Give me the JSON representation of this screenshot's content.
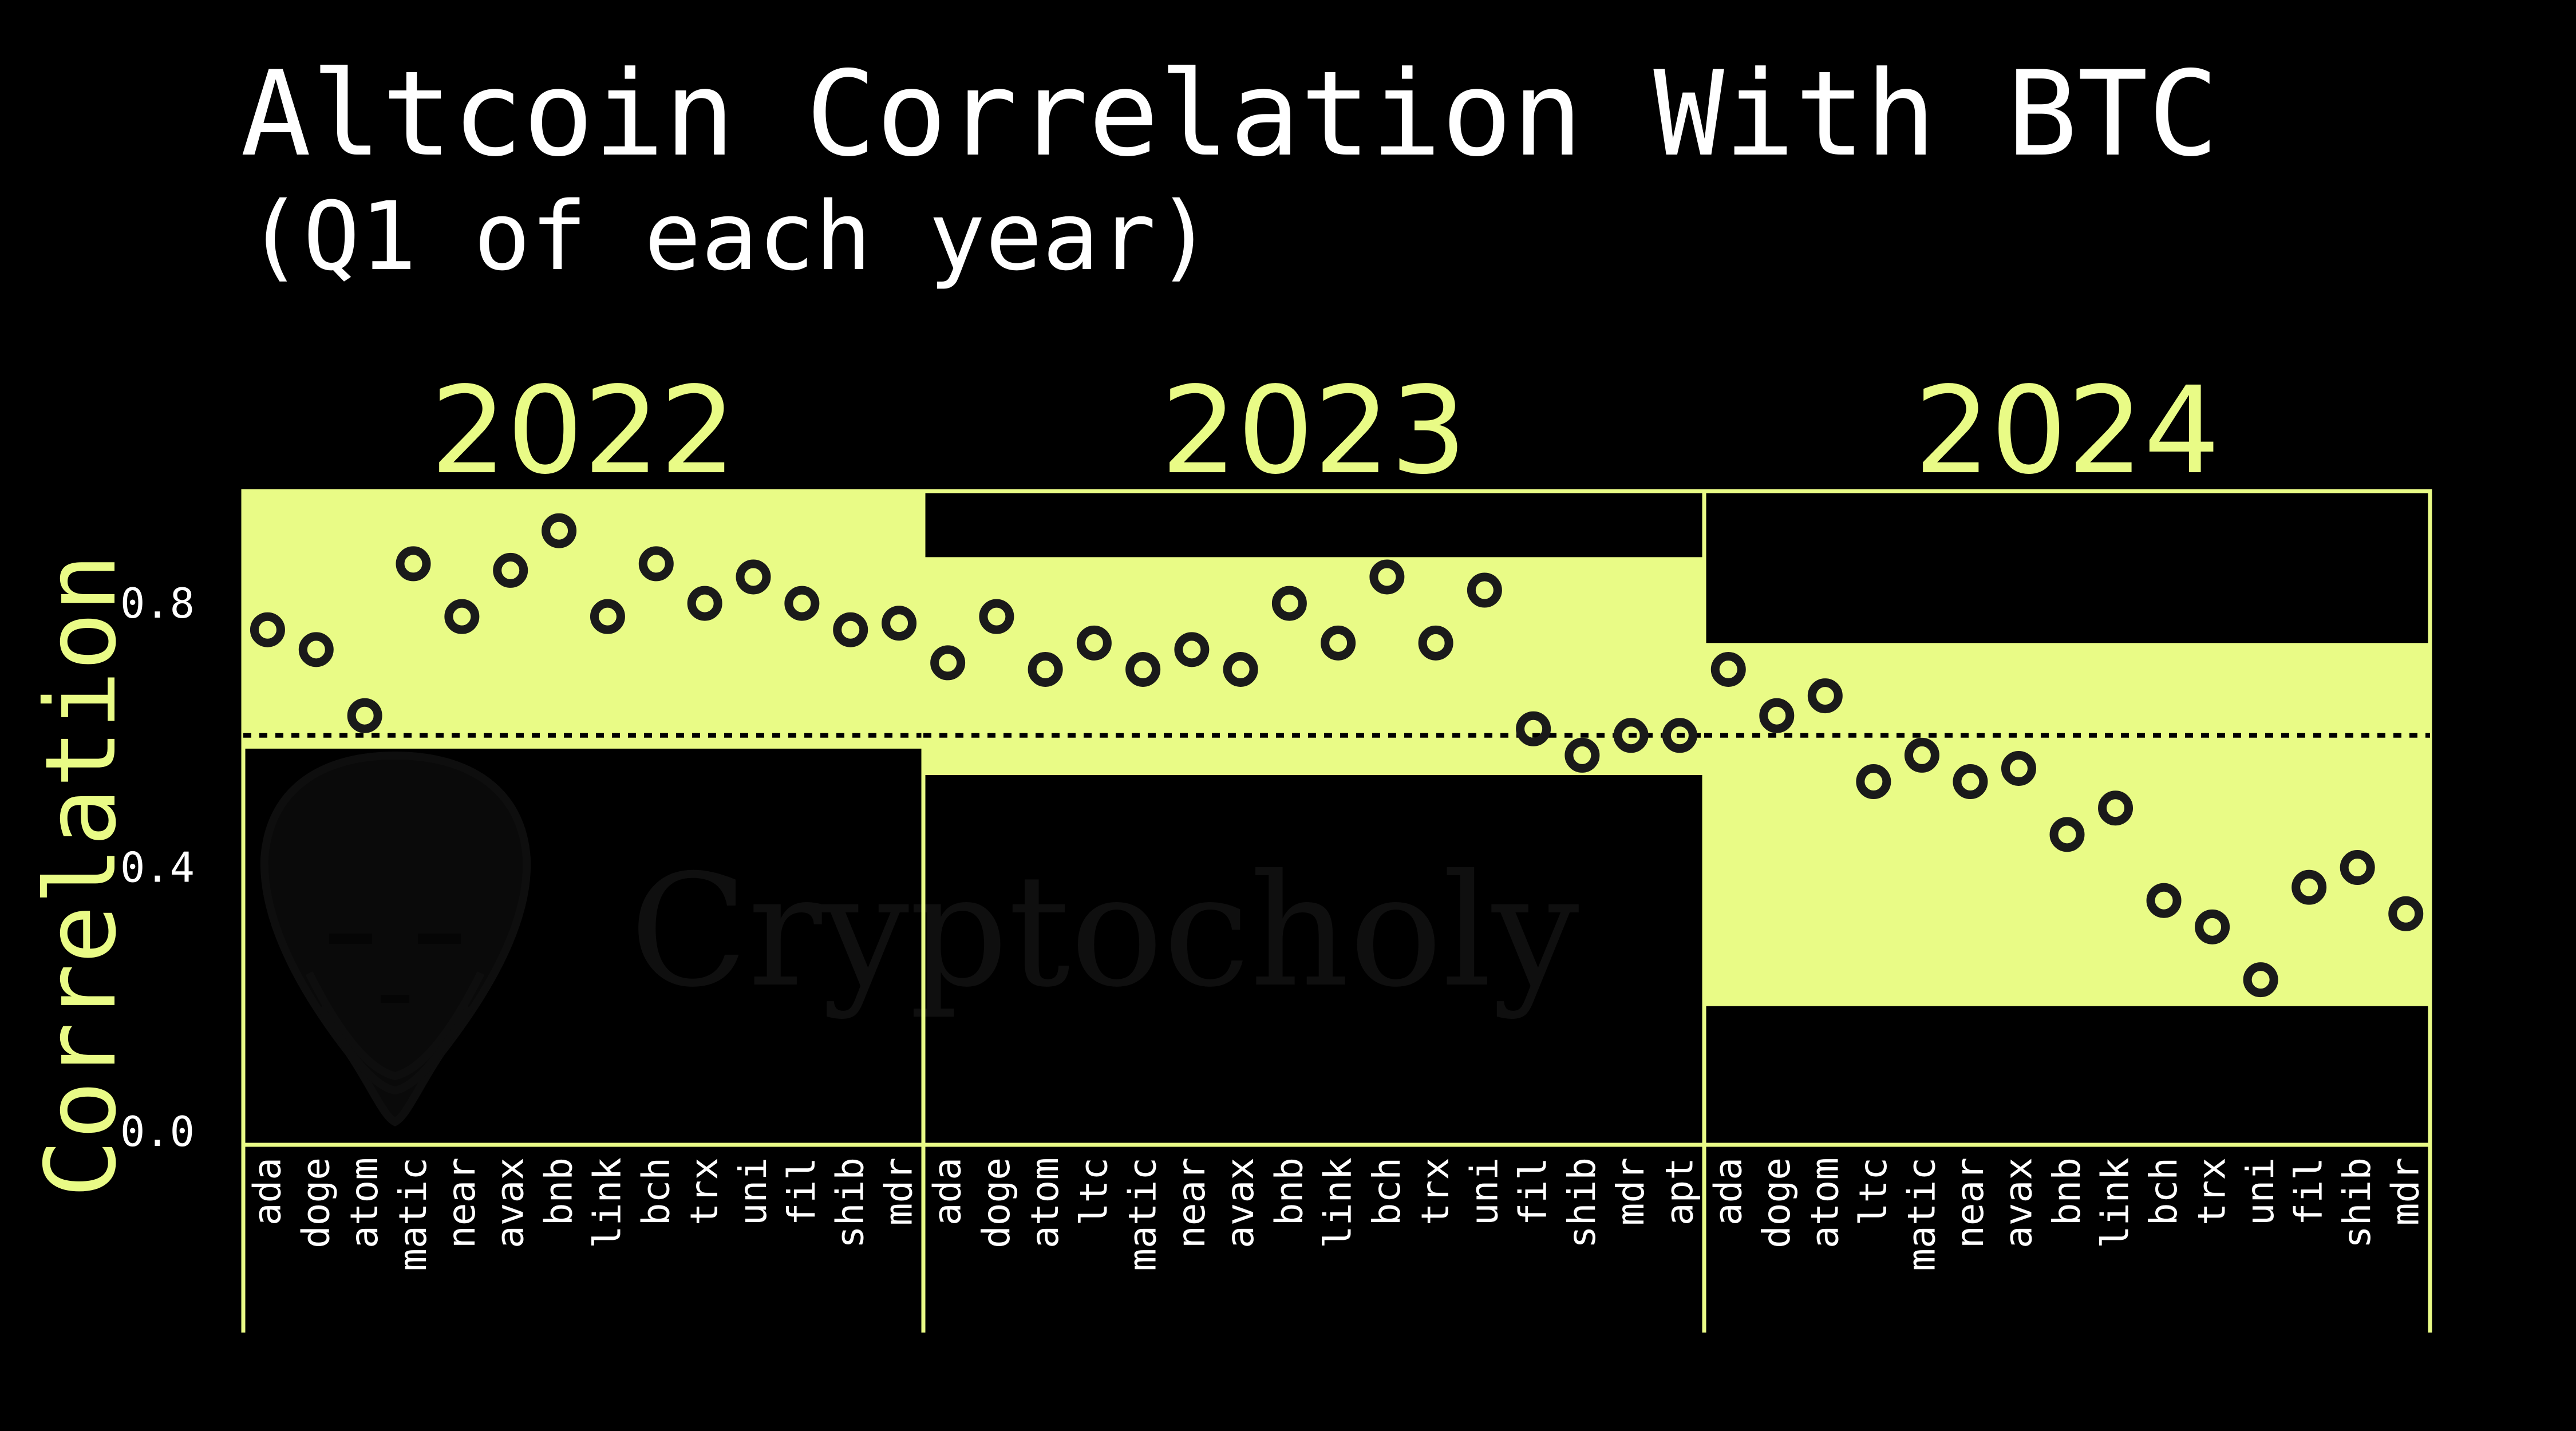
{
  "title": "Altcoin Correlation With BTC",
  "subtitle": "(Q1 of each year)",
  "watermark": "Cryptocholy",
  "colors": {
    "background": "#000000",
    "accent": "#e9fb86",
    "text": "#ffffff",
    "marker_edge": "#1a1a1a"
  },
  "chart_data": {
    "type": "scatter",
    "ylabel": "Correlation",
    "ylim": [
      -0.02,
      0.97
    ],
    "yticks": [
      {
        "value": 0.0,
        "label": "0.0"
      },
      {
        "value": 0.4,
        "label": "0.4"
      },
      {
        "value": 0.8,
        "label": "0.8"
      }
    ],
    "reference_line": 0.6,
    "panels": [
      {
        "label": "2022",
        "band": [
          0.58,
          0.97
        ],
        "coins": [
          "ada",
          "doge",
          "atom",
          "matic",
          "near",
          "avax",
          "bnb",
          "link",
          "bch",
          "trx",
          "uni",
          "fil",
          "shib",
          "mdr"
        ],
        "values": [
          0.76,
          0.73,
          0.63,
          0.86,
          0.78,
          0.85,
          0.91,
          0.78,
          0.86,
          0.8,
          0.84,
          0.8,
          0.76,
          0.77
        ]
      },
      {
        "label": "2023",
        "band": [
          0.54,
          0.87
        ],
        "coins": [
          "ada",
          "doge",
          "atom",
          "ltc",
          "matic",
          "near",
          "avax",
          "bnb",
          "link",
          "bch",
          "trx",
          "uni",
          "fil",
          "shib",
          "mdr",
          "apt"
        ],
        "values": [
          0.71,
          0.78,
          0.7,
          0.74,
          0.7,
          0.73,
          0.7,
          0.8,
          0.74,
          0.84,
          0.74,
          0.82,
          0.61,
          0.57,
          0.6,
          0.6
        ]
      },
      {
        "label": "2024",
        "band": [
          0.19,
          0.74
        ],
        "coins": [
          "ada",
          "doge",
          "atom",
          "ltc",
          "matic",
          "near",
          "avax",
          "bnb",
          "link",
          "bch",
          "trx",
          "uni",
          "fil",
          "shib",
          "mdr"
        ],
        "values": [
          0.7,
          0.63,
          0.66,
          0.53,
          0.57,
          0.53,
          0.55,
          0.45,
          0.49,
          0.35,
          0.31,
          0.23,
          0.37,
          0.4,
          0.33
        ]
      }
    ]
  }
}
